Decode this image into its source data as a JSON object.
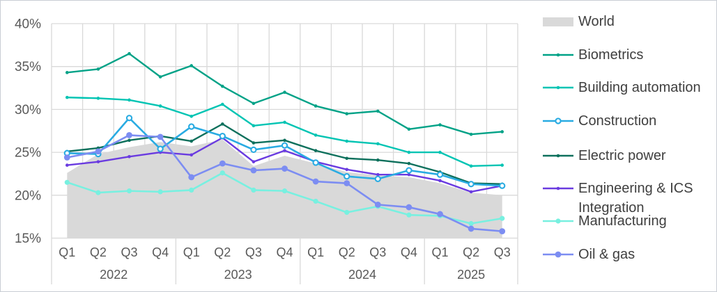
{
  "chart_data": {
    "type": "line",
    "title": "",
    "unit": "%",
    "grid": true,
    "legend_position": "right",
    "y_min": 15,
    "y_max": 40,
    "y_ticks": [
      "40%",
      "35%",
      "30%",
      "25%",
      "20%",
      "15%"
    ],
    "categories": [
      "Q1",
      "Q2",
      "Q3",
      "Q4",
      "Q1",
      "Q2",
      "Q3",
      "Q4",
      "Q1",
      "Q2",
      "Q3",
      "Q4",
      "Q1",
      "Q2",
      "Q3"
    ],
    "year_groups": [
      {
        "label": "2022",
        "count": 4
      },
      {
        "label": "2023",
        "count": 4
      },
      {
        "label": "2024",
        "count": 4
      },
      {
        "label": "2025",
        "count": 3
      }
    ],
    "area_series": {
      "name": "World",
      "color": "#d9d9d9",
      "values": [
        22.6,
        24.8,
        25.6,
        26.2,
        25.7,
        26.5,
        23.4,
        24.6,
        23.7,
        22.7,
        22.3,
        22.1,
        21.4,
        20.3,
        20.0
      ]
    },
    "series": [
      {
        "name": "Biometrics",
        "color": "#00a287",
        "marker": "dot",
        "values": [
          34.3,
          34.7,
          36.5,
          33.8,
          35.1,
          32.7,
          30.7,
          32.0,
          30.4,
          29.5,
          29.8,
          27.7,
          28.2,
          27.1,
          27.4
        ]
      },
      {
        "name": "Building automation",
        "color": "#00c4b3",
        "marker": "dot",
        "values": [
          31.4,
          31.3,
          31.1,
          30.4,
          29.2,
          30.6,
          28.1,
          28.5,
          27.0,
          26.3,
          26.0,
          25.0,
          25.0,
          23.4,
          23.5
        ]
      },
      {
        "name": "Construction",
        "color": "#29abe2",
        "marker": "open-circle",
        "values": [
          24.9,
          24.8,
          29.0,
          25.4,
          28.0,
          26.9,
          25.3,
          25.8,
          23.8,
          22.2,
          21.9,
          22.9,
          22.4,
          21.3,
          21.1
        ]
      },
      {
        "name": "Electric power",
        "color": "#0d705c",
        "marker": "dot",
        "values": [
          25.1,
          25.5,
          26.4,
          26.9,
          26.3,
          28.3,
          26.1,
          26.4,
          25.2,
          24.3,
          24.1,
          23.7,
          22.7,
          21.4,
          21.3
        ]
      },
      {
        "name": "Engineering & ICS Integration",
        "color": "#6a3be0",
        "marker": "dot",
        "values": [
          23.5,
          23.9,
          24.5,
          25.0,
          24.7,
          26.7,
          23.9,
          25.2,
          23.9,
          23.0,
          22.4,
          22.4,
          21.7,
          20.4,
          21.1
        ]
      },
      {
        "name": "Manufacturing",
        "color": "#78f0e0",
        "marker": "small-circle",
        "values": [
          21.5,
          20.3,
          20.5,
          20.4,
          20.6,
          22.6,
          20.6,
          20.5,
          19.3,
          18.0,
          18.7,
          17.7,
          17.6,
          16.7,
          17.3
        ]
      },
      {
        "name": "Oil & gas",
        "color": "#7c8df2",
        "marker": "circle",
        "values": [
          24.4,
          25.1,
          27.0,
          26.8,
          22.1,
          23.7,
          22.9,
          23.1,
          21.6,
          21.4,
          18.9,
          18.6,
          17.8,
          16.1,
          15.8
        ]
      }
    ],
    "draw_order": [
      0,
      1,
      3,
      4,
      5,
      2,
      6
    ]
  },
  "colors": {
    "grid": "#d9d9d9",
    "axis_text": "#595959",
    "legend_text": "#3f3f3f",
    "background": "#ffffff"
  }
}
